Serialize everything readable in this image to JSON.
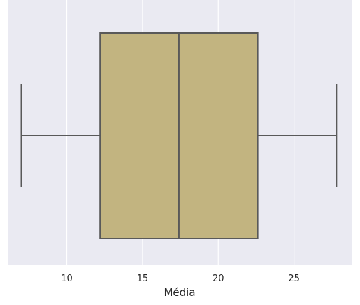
{
  "chart_data": {
    "type": "boxplot",
    "xlabel": "Média",
    "ylabel": "",
    "orientation": "horizontal",
    "xlim": [
      6.1,
      28.8
    ],
    "xticks": [
      10,
      15,
      20,
      25
    ],
    "xtick_labels": [
      "10",
      "15",
      "20",
      "25"
    ],
    "grid": true,
    "box": {
      "whisker_low": 7.0,
      "q1": 12.2,
      "median": 17.4,
      "q3": 22.6,
      "whisker_high": 27.8
    },
    "colors": {
      "background": "#eaeaf2",
      "grid": "#ffffff",
      "box_fill": "#c2b480",
      "line": "#595959"
    }
  }
}
